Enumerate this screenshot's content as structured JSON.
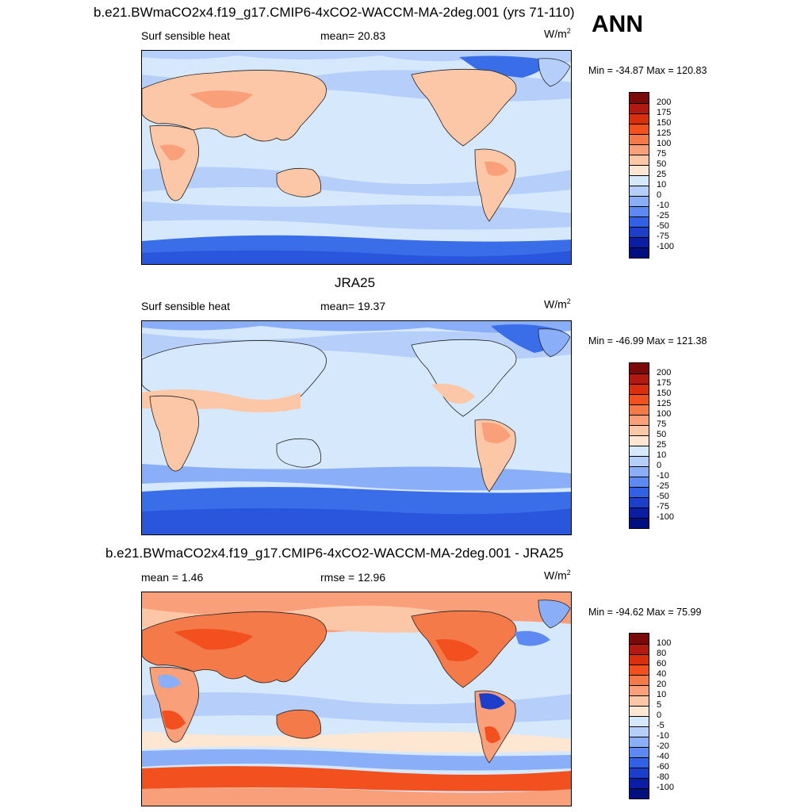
{
  "season": "ANN",
  "units_base": "W/m",
  "units_exp": "2",
  "panels": [
    {
      "title": "b.e21.BWmaCO2x4.f19_g17.CMIP6-4xCO2-WACCM-MA-2deg.001 (yrs 71-110)",
      "left_label": "Surf sensible heat",
      "center_label": "mean=  20.83",
      "minmax": "Min = -34.87 Max = 120.83",
      "levels": [
        "200",
        "175",
        "150",
        "125",
        "100",
        "75",
        "50",
        "25",
        "10",
        "0",
        "-10",
        "-25",
        "-50",
        "-75",
        "-100"
      ]
    },
    {
      "title": "JRA25",
      "left_label": "Surf sensible heat",
      "center_label": "mean=  19.37",
      "minmax": "Min = -46.99 Max = 121.38",
      "levels": [
        "200",
        "175",
        "150",
        "125",
        "100",
        "75",
        "50",
        "25",
        "10",
        "0",
        "-10",
        "-25",
        "-50",
        "-75",
        "-100"
      ]
    },
    {
      "title": "b.e21.BWmaCO2x4.f19_g17.CMIP6-4xCO2-WACCM-MA-2deg.001 - JRA25",
      "left_label": "mean =   1.46",
      "center_label": "rmse =  12.96",
      "minmax": "Min = -94.62 Max =  75.99",
      "levels": [
        "100",
        "80",
        "60",
        "40",
        "20",
        "10",
        "5",
        "0",
        "-5",
        "-10",
        "-20",
        "-40",
        "-60",
        "-80",
        "-100"
      ]
    }
  ],
  "colors": {
    "scale": [
      "#7a0a0a",
      "#b01a10",
      "#d8300e",
      "#f2501e",
      "#f57a4a",
      "#f9a07a",
      "#fcc7a7",
      "#fde6d2",
      "#d6e8fb",
      "#b6cffa",
      "#8aaef7",
      "#5e89f2",
      "#3361e5",
      "#1c3ec9",
      "#0b1ea3",
      "#000f80"
    ],
    "land_warm": "#fcc7a7",
    "land_hot": "#f9a07a",
    "ocean_neutral": "#d6e8fb",
    "ocean_cool": "#b6cffa",
    "polar_cold": "#3a6ee8",
    "polar_colder": "#2a55dd",
    "diff_warm": "#f9a07a",
    "diff_hot": "#f2501e",
    "diff_cool": "#8aaef7",
    "diff_cold": "#3361e5"
  },
  "chart_data": [
    {
      "type": "heatmap",
      "title": "b.e21.BWmaCO2x4.f19_g17.CMIP6-4xCO2-WACCM-MA-2deg.001 (yrs 71-110)",
      "variable": "Surf sensible heat",
      "units": "W/m2",
      "mean": 20.83,
      "min": -34.87,
      "max": 120.83,
      "contour_levels": [
        -100,
        -75,
        -50,
        -25,
        -10,
        0,
        10,
        25,
        50,
        75,
        100,
        125,
        150,
        175,
        200
      ],
      "projection": "global lat-lon, Pacific-centered",
      "legend": "right"
    },
    {
      "type": "heatmap",
      "title": "JRA25",
      "variable": "Surf sensible heat",
      "units": "W/m2",
      "mean": 19.37,
      "min": -46.99,
      "max": 121.38,
      "contour_levels": [
        -100,
        -75,
        -50,
        -25,
        -10,
        0,
        10,
        25,
        50,
        75,
        100,
        125,
        150,
        175,
        200
      ],
      "projection": "global lat-lon, Pacific-centered",
      "legend": "right"
    },
    {
      "type": "heatmap",
      "title": "b.e21.BWmaCO2x4.f19_g17.CMIP6-4xCO2-WACCM-MA-2deg.001 - JRA25",
      "units": "W/m2",
      "mean": 1.46,
      "rmse": 12.96,
      "min": -94.62,
      "max": 75.99,
      "contour_levels": [
        -100,
        -80,
        -60,
        -40,
        -20,
        -10,
        -5,
        0,
        5,
        10,
        20,
        40,
        60,
        80,
        100
      ],
      "projection": "global lat-lon, Pacific-centered",
      "legend": "right"
    }
  ]
}
